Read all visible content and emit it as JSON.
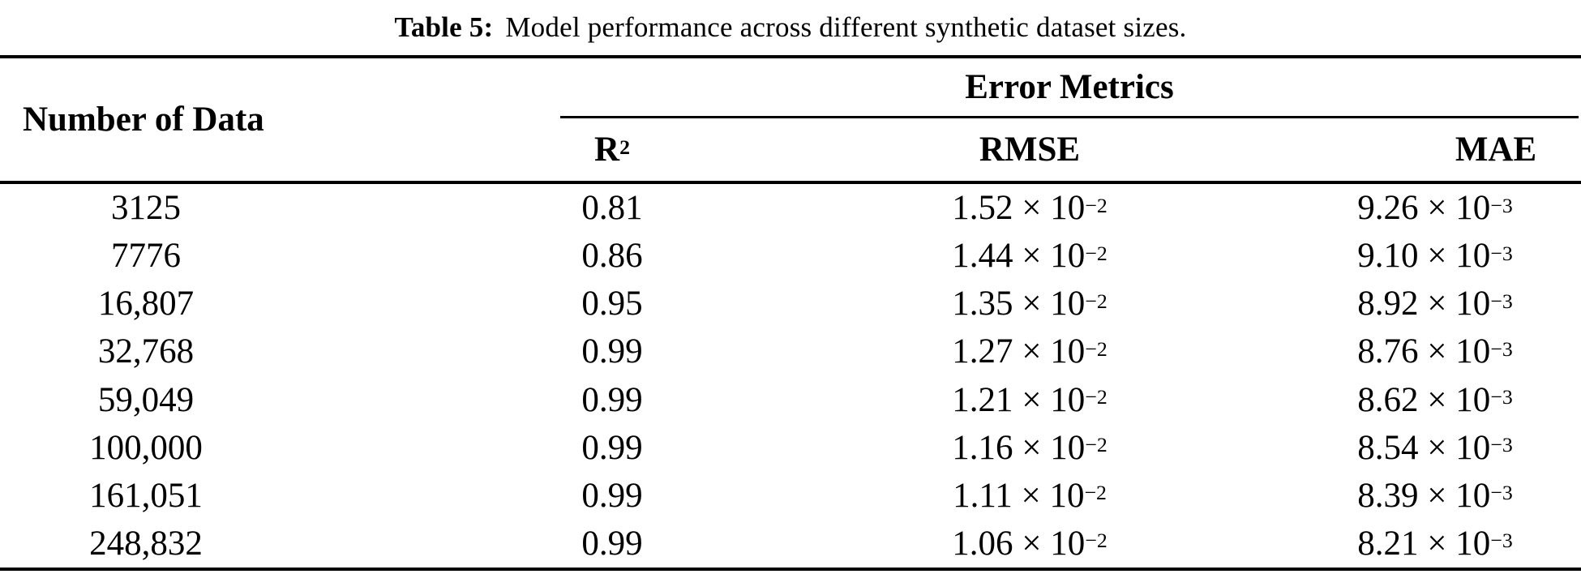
{
  "caption": {
    "label": "Table 5:",
    "text": "Model performance across different synthetic dataset sizes."
  },
  "table": {
    "col_header": "Number of Data",
    "group_header": "Error Metrics",
    "subheaders": {
      "r2_base": "R",
      "r2_exp": "2",
      "rmse": "RMSE",
      "mae": "MAE"
    },
    "rows": [
      {
        "n": "3125",
        "r2": "0.81",
        "rmse_mant": "1.52 × 10",
        "rmse_exp": "−2",
        "mae_mant": "9.26 × 10",
        "mae_exp": "−3"
      },
      {
        "n": "7776",
        "r2": "0.86",
        "rmse_mant": "1.44 × 10",
        "rmse_exp": "−2",
        "mae_mant": "9.10 × 10",
        "mae_exp": "−3"
      },
      {
        "n": "16,807",
        "r2": "0.95",
        "rmse_mant": "1.35 × 10",
        "rmse_exp": "−2",
        "mae_mant": "8.92 × 10",
        "mae_exp": "−3"
      },
      {
        "n": "32,768",
        "r2": "0.99",
        "rmse_mant": "1.27 × 10",
        "rmse_exp": "−2",
        "mae_mant": "8.76 × 10",
        "mae_exp": "−3"
      },
      {
        "n": "59,049",
        "r2": "0.99",
        "rmse_mant": "1.21 × 10",
        "rmse_exp": "−2",
        "mae_mant": "8.62 × 10",
        "mae_exp": "−3"
      },
      {
        "n": "100,000",
        "r2": "0.99",
        "rmse_mant": "1.16 × 10",
        "rmse_exp": "−2",
        "mae_mant": "8.54 × 10",
        "mae_exp": "−3"
      },
      {
        "n": "161,051",
        "r2": "0.99",
        "rmse_mant": "1.11 × 10",
        "rmse_exp": "−2",
        "mae_mant": "8.39 × 10",
        "mae_exp": "−3"
      },
      {
        "n": "248,832",
        "r2": "0.99",
        "rmse_mant": "1.06 × 10",
        "rmse_exp": "−2",
        "mae_mant": "8.21 × 10",
        "mae_exp": "−3"
      }
    ]
  },
  "colors": {
    "background": "#ffffff",
    "text": "#000000",
    "rule": "#000000"
  }
}
